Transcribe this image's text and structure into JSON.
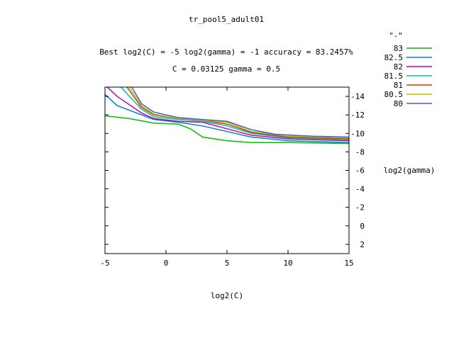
{
  "chart_data": {
    "type": "line",
    "title": "tr_pool5_adult01",
    "subtitle_line1": "Best log2(C) = -5  log2(gamma) = -1  accuracy = 83.2457%",
    "subtitle_line2": "C = 0.03125  gamma = 0.5",
    "xlabel": "log2(C)",
    "ylabel": "log2(gamma)",
    "xlim": [
      -5,
      15
    ],
    "ylim": [
      3,
      -15
    ],
    "x_ticks": [
      -5,
      0,
      5,
      10,
      15
    ],
    "y_ticks": [
      -14,
      -12,
      -10,
      -8,
      -6,
      -4,
      -2,
      0,
      2
    ],
    "grid": false,
    "legend_position": "top-right",
    "legend_title": "\"-\"",
    "series": [
      {
        "name": "83",
        "color": "#00c000",
        "points": [
          [
            -5,
            -11.9
          ],
          [
            -3,
            -11.6
          ],
          [
            -1,
            -11.1
          ],
          [
            1,
            -11.0
          ],
          [
            2,
            -10.5
          ],
          [
            3,
            -9.6
          ],
          [
            5,
            -9.2
          ],
          [
            7,
            -9.0
          ],
          [
            10,
            -9.0
          ],
          [
            15,
            -8.9
          ]
        ]
      },
      {
        "name": "82.5",
        "color": "#0080c0",
        "points": [
          [
            -5,
            -14.2
          ],
          [
            -4,
            -13.0
          ],
          [
            -2,
            -12.0
          ],
          [
            -1,
            -11.5
          ],
          [
            1,
            -11.2
          ],
          [
            3,
            -10.8
          ],
          [
            5,
            -10.2
          ],
          [
            7,
            -9.6
          ],
          [
            10,
            -9.2
          ],
          [
            15,
            -9.0
          ]
        ]
      },
      {
        "name": "82",
        "color": "#c000c0",
        "points": [
          [
            -4.8,
            -15
          ],
          [
            -4,
            -14.0
          ],
          [
            -2,
            -12.2
          ],
          [
            -1,
            -11.6
          ],
          [
            1,
            -11.3
          ],
          [
            3,
            -11.2
          ],
          [
            5,
            -10.5
          ],
          [
            7,
            -9.8
          ],
          [
            10,
            -9.4
          ],
          [
            15,
            -9.2
          ]
        ]
      },
      {
        "name": "81.5",
        "color": "#00c0c0",
        "points": [
          [
            -3.7,
            -15
          ],
          [
            -2,
            -12.6
          ],
          [
            -1,
            -11.8
          ],
          [
            1,
            -11.5
          ],
          [
            3,
            -11.3
          ],
          [
            5,
            -10.8
          ],
          [
            7,
            -10.0
          ],
          [
            10,
            -9.5
          ],
          [
            15,
            -9.3
          ]
        ]
      },
      {
        "name": "81",
        "color": "#c04000",
        "points": [
          [
            -3.2,
            -15
          ],
          [
            -2,
            -12.8
          ],
          [
            -1,
            -12.0
          ],
          [
            1,
            -11.6
          ],
          [
            3,
            -11.4
          ],
          [
            5,
            -11.0
          ],
          [
            7,
            -10.1
          ],
          [
            10,
            -9.6
          ],
          [
            15,
            -9.4
          ]
        ]
      },
      {
        "name": "80.5",
        "color": "#c0c000",
        "points": [
          [
            -3.0,
            -15
          ],
          [
            -2,
            -13.0
          ],
          [
            -1,
            -12.1
          ],
          [
            1,
            -11.6
          ],
          [
            3,
            -11.4
          ],
          [
            5,
            -11.2
          ],
          [
            7,
            -10.2
          ],
          [
            10,
            -9.7
          ],
          [
            15,
            -9.5
          ]
        ]
      },
      {
        "name": "80",
        "color": "#4060e0",
        "points": [
          [
            -2.8,
            -15
          ],
          [
            -2,
            -13.2
          ],
          [
            -1,
            -12.3
          ],
          [
            1,
            -11.7
          ],
          [
            3,
            -11.5
          ],
          [
            5,
            -11.3
          ],
          [
            7,
            -10.4
          ],
          [
            9,
            -9.9
          ],
          [
            12,
            -9.7
          ],
          [
            15,
            -9.6
          ]
        ]
      }
    ]
  }
}
